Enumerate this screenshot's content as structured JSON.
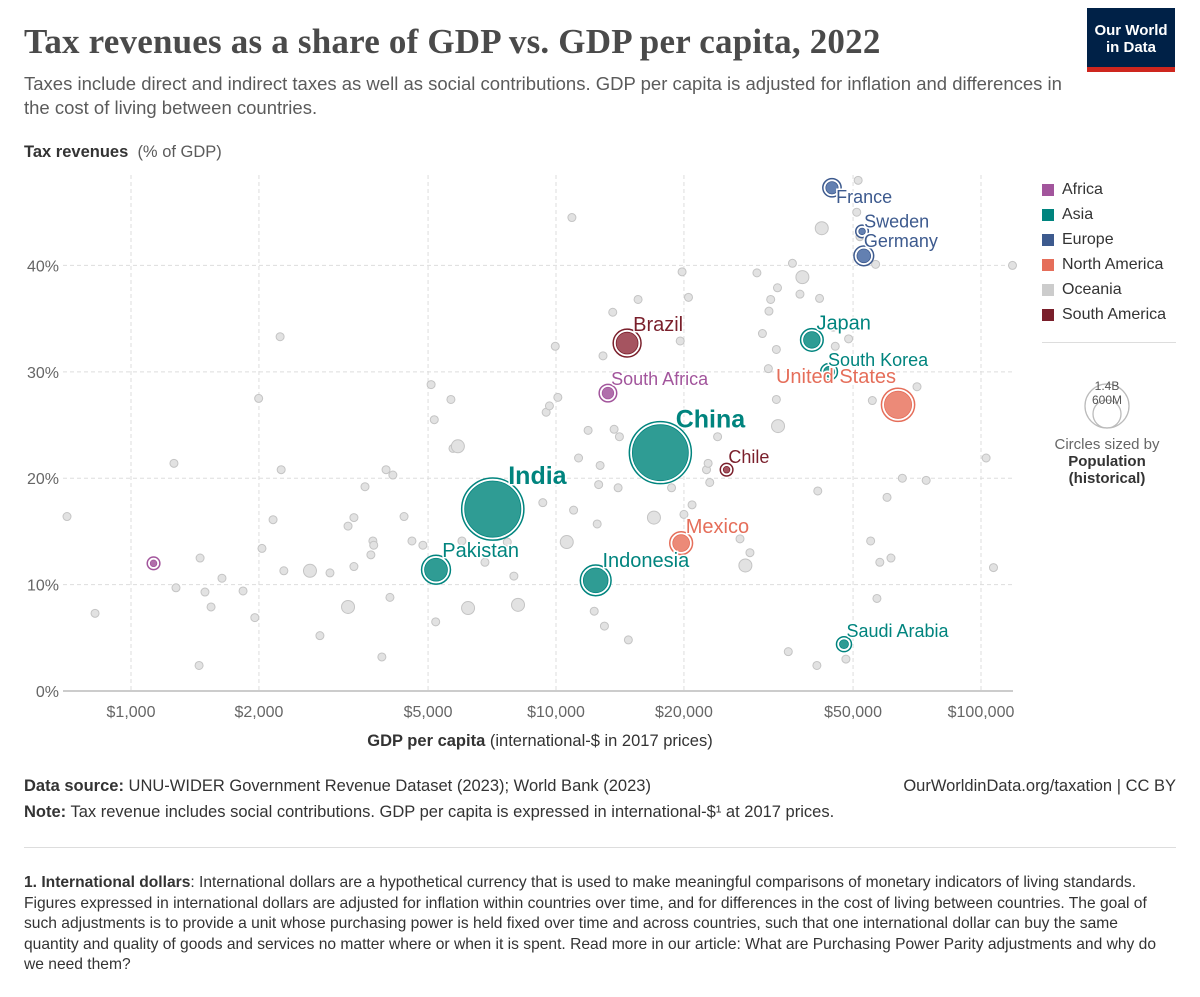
{
  "header": {
    "title": "Tax revenues as a share of GDP vs. GDP per capita, 2022",
    "subtitle": "Taxes include direct and indirect taxes as well as social contributions. GDP per capita is adjusted for inflation and differences in the cost of living between countries.",
    "logo_line1": "Our World",
    "logo_line2": "in Data"
  },
  "chart_data": {
    "type": "scatter",
    "title": "Tax revenues as a share of GDP vs. GDP per capita, 2022",
    "ylabel": "Tax revenues",
    "ylabel_unit": "(% of GDP)",
    "xlabel": "GDP per capita",
    "xlabel_unit": "(international-$ in 2017 prices)",
    "x_scale": "log",
    "xlim": [
      690,
      119000
    ],
    "ylim": [
      0,
      48.5
    ],
    "x_ticks": [
      1000,
      2000,
      5000,
      10000,
      20000,
      50000,
      100000
    ],
    "x_tick_labels": [
      "$1,000",
      "$2,000",
      "$5,000",
      "$10,000",
      "$20,000",
      "$50,000",
      "$100,000"
    ],
    "y_ticks": [
      0,
      10,
      20,
      30,
      40
    ],
    "y_tick_labels": [
      "0%",
      "10%",
      "20%",
      "30%",
      "40%"
    ],
    "grid": true,
    "legend_placement": "right",
    "size_by": "Population (historical)",
    "regions": [
      {
        "name": "Africa",
        "color": "#a2559c",
        "fill": "#b06fab"
      },
      {
        "name": "Asia",
        "color": "#00847e",
        "fill": "#2f9c94"
      },
      {
        "name": "Europe",
        "color": "#3d5a8e",
        "fill": "#6380b1"
      },
      {
        "name": "North America",
        "color": "#e56e5a",
        "fill": "#ec8a78"
      },
      {
        "name": "Oceania",
        "color": "#c8c8c8",
        "fill": "#cccccc"
      },
      {
        "name": "South America",
        "color": "#7a1f2b",
        "fill": "#a55460"
      }
    ],
    "highlighted": [
      {
        "name": "",
        "region": "Africa",
        "x": 1130,
        "y": 12.0,
        "pop": 13
      },
      {
        "name": "Pakistan",
        "region": "Asia",
        "x": 5220,
        "y": 11.4,
        "pop": 235
      },
      {
        "name": "India",
        "region": "Asia",
        "x": 7100,
        "y": 17.1,
        "pop": 1420
      },
      {
        "name": "Indonesia",
        "region": "Asia",
        "x": 12400,
        "y": 10.4,
        "pop": 275
      },
      {
        "name": "South Africa",
        "region": "Africa",
        "x": 13250,
        "y": 28.0,
        "pop": 60
      },
      {
        "name": "Brazil",
        "region": "South America",
        "x": 14700,
        "y": 32.7,
        "pop": 215
      },
      {
        "name": "China",
        "region": "Asia",
        "x": 17600,
        "y": 22.4,
        "pop": 1410
      },
      {
        "name": "Mexico",
        "region": "North America",
        "x": 19700,
        "y": 13.9,
        "pop": 127
      },
      {
        "name": "Chile",
        "region": "South America",
        "x": 25200,
        "y": 20.8,
        "pop": 19.6
      },
      {
        "name": "Japan",
        "region": "Asia",
        "x": 40000,
        "y": 33.0,
        "pop": 124
      },
      {
        "name": "South Korea",
        "region": "Asia",
        "x": 43900,
        "y": 30.0,
        "pop": 52
      },
      {
        "name": "Saudi Arabia",
        "region": "Asia",
        "x": 47600,
        "y": 4.4,
        "pop": 36
      },
      {
        "name": "France",
        "region": "Europe",
        "x": 44600,
        "y": 47.3,
        "pop": 68
      },
      {
        "name": "Sweden",
        "region": "Europe",
        "x": 52500,
        "y": 43.2,
        "pop": 10.5
      },
      {
        "name": "Germany",
        "region": "Europe",
        "x": 53000,
        "y": 40.9,
        "pop": 84
      },
      {
        "name": "United States",
        "region": "North America",
        "x": 63800,
        "y": 26.9,
        "pop": 333
      }
    ],
    "other_points": [
      [
        707,
        16.4
      ],
      [
        823,
        7.3
      ],
      [
        1262,
        21.4
      ],
      [
        1276,
        9.7
      ],
      [
        1454,
        12.5
      ],
      [
        1446,
        2.4
      ],
      [
        1493,
        9.3
      ],
      [
        1543,
        7.9
      ],
      [
        1637,
        10.6
      ],
      [
        1835,
        9.4
      ],
      [
        1956,
        6.9
      ],
      [
        1997,
        27.5
      ],
      [
        2033,
        13.4
      ],
      [
        2159,
        16.1
      ],
      [
        2243,
        33.3
      ],
      [
        2289,
        11.3
      ],
      [
        2256,
        20.8
      ],
      [
        2637,
        11.3
      ],
      [
        2783,
        5.2
      ],
      [
        2939,
        11.1
      ],
      [
        3241,
        15.5
      ],
      [
        3346,
        16.3
      ],
      [
        3553,
        19.2
      ],
      [
        3708,
        14.1
      ],
      [
        3725,
        13.7
      ],
      [
        3982,
        20.8
      ],
      [
        4132,
        20.3
      ],
      [
        4067,
        8.8
      ],
      [
        3893,
        3.2
      ],
      [
        3346,
        11.7
      ],
      [
        3668,
        12.8
      ],
      [
        3241,
        7.9
      ],
      [
        4390,
        16.4
      ],
      [
        4582,
        14.1
      ],
      [
        4862,
        13.7
      ],
      [
        5083,
        28.8
      ],
      [
        5171,
        25.5
      ],
      [
        5723,
        22.8
      ],
      [
        5877,
        23.0
      ],
      [
        5211,
        6.5
      ],
      [
        6210,
        7.8
      ],
      [
        6007,
        14.1
      ],
      [
        5659,
        27.4
      ],
      [
        6660,
        18.8
      ],
      [
        6805,
        12.1
      ],
      [
        7960,
        10.8
      ],
      [
        8140,
        8.1
      ],
      [
        7680,
        14.0
      ],
      [
        9310,
        17.7
      ],
      [
        9480,
        26.2
      ],
      [
        9650,
        26.8
      ],
      [
        9960,
        32.4
      ],
      [
        10100,
        27.6
      ],
      [
        10600,
        14.0
      ],
      [
        10900,
        44.5
      ],
      [
        11000,
        17.0
      ],
      [
        11300,
        21.9
      ],
      [
        11900,
        24.5
      ],
      [
        12000,
        10.2
      ],
      [
        12300,
        7.5
      ],
      [
        12500,
        15.7
      ],
      [
        12600,
        19.4
      ],
      [
        12700,
        21.2
      ],
      [
        12900,
        31.5
      ],
      [
        13000,
        6.1
      ],
      [
        13600,
        35.6
      ],
      [
        13700,
        24.6
      ],
      [
        14000,
        19.1
      ],
      [
        14100,
        23.9
      ],
      [
        14800,
        4.8
      ],
      [
        15600,
        36.8
      ],
      [
        16600,
        29.6
      ],
      [
        17000,
        24.5
      ],
      [
        17000,
        16.3
      ],
      [
        18700,
        19.1
      ],
      [
        19600,
        32.9
      ],
      [
        19800,
        39.4
      ],
      [
        20000,
        16.6
      ],
      [
        20500,
        37.0
      ],
      [
        20900,
        17.5
      ],
      [
        22600,
        20.8
      ],
      [
        23000,
        19.6
      ],
      [
        22800,
        21.4
      ],
      [
        24000,
        23.9
      ],
      [
        27100,
        14.3
      ],
      [
        27900,
        11.8
      ],
      [
        28600,
        13.0
      ],
      [
        29700,
        39.3
      ],
      [
        30600,
        33.6
      ],
      [
        31700,
        35.7
      ],
      [
        31600,
        30.3
      ],
      [
        32000,
        36.8
      ],
      [
        33000,
        32.1
      ],
      [
        33000,
        27.4
      ],
      [
        33200,
        37.9
      ],
      [
        33300,
        24.9
      ],
      [
        35200,
        3.7
      ],
      [
        36000,
        40.2
      ],
      [
        37500,
        37.3
      ],
      [
        38000,
        38.9
      ],
      [
        41300,
        18.8
      ],
      [
        41100,
        2.4
      ],
      [
        41700,
        36.9
      ],
      [
        42200,
        43.5
      ],
      [
        44900,
        34.2
      ],
      [
        45400,
        32.4
      ],
      [
        48100,
        3.0
      ],
      [
        48800,
        33.1
      ],
      [
        51000,
        45.0
      ],
      [
        51400,
        48.0
      ],
      [
        51900,
        42.7
      ],
      [
        56900,
        8.7
      ],
      [
        55000,
        14.1
      ],
      [
        55500,
        27.3
      ],
      [
        57800,
        12.1
      ],
      [
        61400,
        12.5
      ],
      [
        60100,
        18.2
      ],
      [
        56500,
        40.1
      ],
      [
        65300,
        20.0
      ],
      [
        70700,
        28.6
      ],
      [
        74300,
        19.8
      ],
      [
        102800,
        21.9
      ],
      [
        107000,
        11.6
      ],
      [
        118600,
        40.0
      ]
    ],
    "larger_other_points": [
      [
        6210,
        7.8
      ],
      [
        10600,
        14.0
      ],
      [
        17000,
        16.3
      ],
      [
        27900,
        11.8
      ],
      [
        33300,
        24.9
      ],
      [
        38000,
        38.9
      ],
      [
        42200,
        43.5
      ],
      [
        5877,
        23.0
      ],
      [
        8140,
        8.1
      ],
      [
        2637,
        11.3
      ],
      [
        3241,
        7.9
      ]
    ],
    "size_legend": {
      "large": "1.4B",
      "small": "600M",
      "caption": "Circles sized by",
      "variable_line1": "Population",
      "variable_line2": "(historical)"
    }
  },
  "footer": {
    "source_label": "Data source:",
    "source_text": "UNU-WIDER Government Revenue Dataset (2023); World Bank (2023)",
    "credit": "OurWorldinData.org/taxation | CC BY",
    "note_label": "Note:",
    "note_text": "Tax revenue includes social contributions. GDP per capita is expressed in  international-$¹ at 2017 prices.",
    "footnote_label": "1. International dollars",
    "footnote_text": ": International dollars are a hypothetical currency that is used to make meaningful comparisons of monetary indicators of living standards. Figures expressed in international dollars are adjusted for inflation within countries over time, and for differences in the cost of living between countries. The goal of such adjustments is to provide a unit whose purchasing power is held fixed over time and across countries, such that one international dollar can buy the same quantity and quality of goods and services no matter where or when it is spent. Read more in our article: What are Purchasing Power Parity adjustments and why do we need them?"
  }
}
